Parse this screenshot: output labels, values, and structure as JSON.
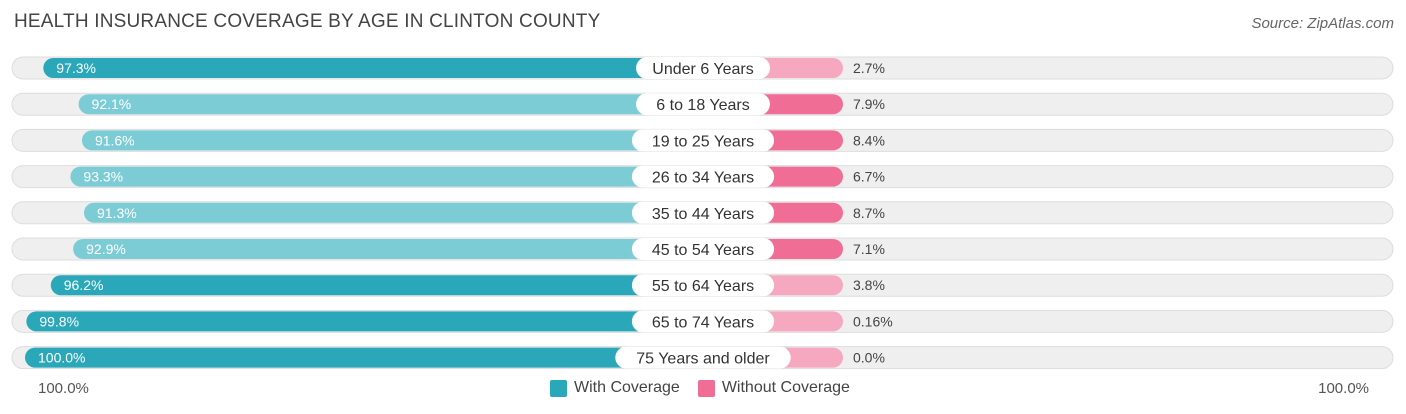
{
  "title": "HEALTH INSURANCE COVERAGE BY AGE IN CLINTON COUNTY",
  "source": "Source: ZipAtlas.com",
  "axis": {
    "left_label": "100.0%",
    "right_label": "100.0%"
  },
  "legend": {
    "with_label": "With Coverage",
    "without_label": "Without Coverage"
  },
  "colors": {
    "with_strong": "#2aa7b9",
    "with_light": "#7cccd6",
    "without_strong": "#f06d96",
    "without_light": "#f7a8c1",
    "row_bg": "#efefef",
    "row_border": "#dddddd"
  },
  "chart_data": {
    "type": "bar",
    "orientation": "horizontal-diverging",
    "title": "HEALTH INSURANCE COVERAGE BY AGE IN CLINTON COUNTY",
    "categories": [
      "Under 6 Years",
      "6 to 18 Years",
      "19 to 25 Years",
      "26 to 34 Years",
      "35 to 44 Years",
      "45 to 54 Years",
      "55 to 64 Years",
      "65 to 74 Years",
      "75 Years and older"
    ],
    "series": [
      {
        "name": "With Coverage",
        "values": [
          97.3,
          92.1,
          91.6,
          93.3,
          91.3,
          92.9,
          96.2,
          99.8,
          100.0
        ],
        "labels": [
          "97.3%",
          "92.1%",
          "91.6%",
          "93.3%",
          "91.3%",
          "92.9%",
          "96.2%",
          "99.8%",
          "100.0%"
        ]
      },
      {
        "name": "Without Coverage",
        "values": [
          2.7,
          7.9,
          8.4,
          6.7,
          8.7,
          7.1,
          3.8,
          0.16,
          0.0
        ],
        "labels": [
          "2.7%",
          "7.9%",
          "8.4%",
          "6.7%",
          "8.7%",
          "7.1%",
          "3.8%",
          "0.16%",
          "0.0%"
        ]
      }
    ],
    "xlim": [
      0,
      100
    ],
    "legend_position": "bottom-center"
  }
}
